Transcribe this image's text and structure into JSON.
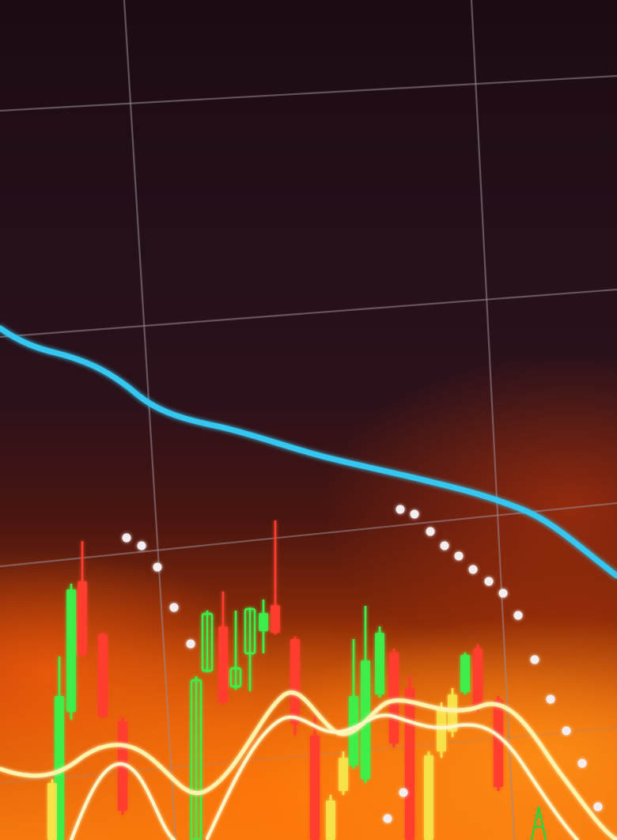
{
  "photo": {
    "subject": "stock-market-candlestick-chart",
    "colors": {
      "background_top": "#1c0a14",
      "background_bottom": "#f37a10",
      "grid": "#8a7a86",
      "price_line": "#35c7ef",
      "bullish_candle": "#3df04a",
      "bearish_candle": "#ff3d2e",
      "moving_average": "#fff4b0",
      "dots": "#f4eef0"
    },
    "icons": [
      "line-chart",
      "candlestick",
      "moving-average",
      "parabolic-sar-dots"
    ]
  }
}
